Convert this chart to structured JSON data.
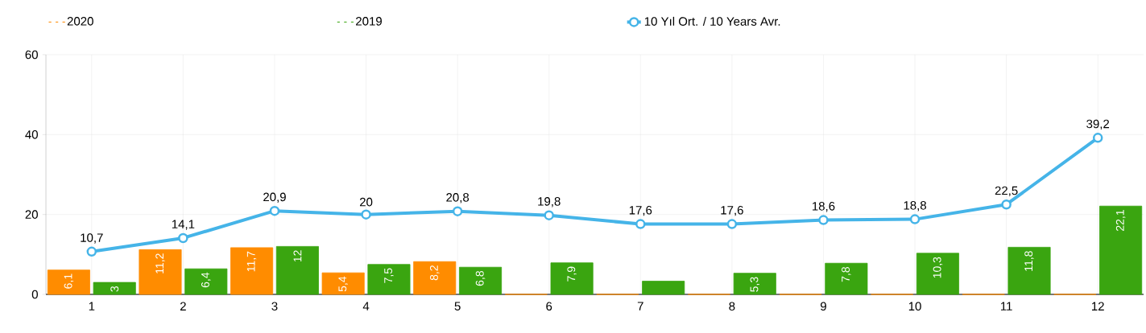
{
  "chart_data": {
    "type": "bar",
    "categories": [
      "1",
      "2",
      "3",
      "4",
      "5",
      "6",
      "7",
      "8",
      "9",
      "10",
      "11",
      "12"
    ],
    "series": [
      {
        "name": "2020",
        "color": "#ff8c00",
        "values": [
          6.1,
          11.2,
          11.7,
          5.4,
          8.2,
          0,
          0,
          0,
          0,
          0,
          0,
          0
        ],
        "value_labels": [
          "6,1",
          "11,2",
          "11,7",
          "5,4",
          "8,2",
          null,
          null,
          null,
          null,
          null,
          null,
          null
        ]
      },
      {
        "name": "2019",
        "color": "#3aa510",
        "values": [
          3,
          6.4,
          12,
          7.5,
          6.8,
          7.9,
          3.3,
          5.3,
          7.8,
          10.3,
          11.8,
          22.1
        ],
        "value_labels": [
          "3",
          "6,4",
          "12",
          "7,5",
          "6,8",
          "7,9",
          null,
          "5,3",
          "7,8",
          "10,3",
          "11,8",
          "22,1"
        ]
      },
      {
        "name": "10 Yıl Ort. / 10 Years Avr.",
        "type": "line",
        "color": "#45b4e8",
        "marker": "circle",
        "values": [
          10.7,
          14.1,
          20.9,
          20,
          20.8,
          19.8,
          17.6,
          17.6,
          18.6,
          18.8,
          22.5,
          39.2
        ],
        "value_labels": [
          "10,7",
          "14,1",
          "20,9",
          "20",
          "20,8",
          "19,8",
          "17,6",
          "17,6",
          "18,6",
          "18,8",
          "22,5",
          "39,2"
        ]
      }
    ],
    "ylim": [
      0,
      60
    ],
    "yticks": [
      0,
      20,
      40,
      60
    ],
    "grid": true,
    "legend": "top"
  }
}
